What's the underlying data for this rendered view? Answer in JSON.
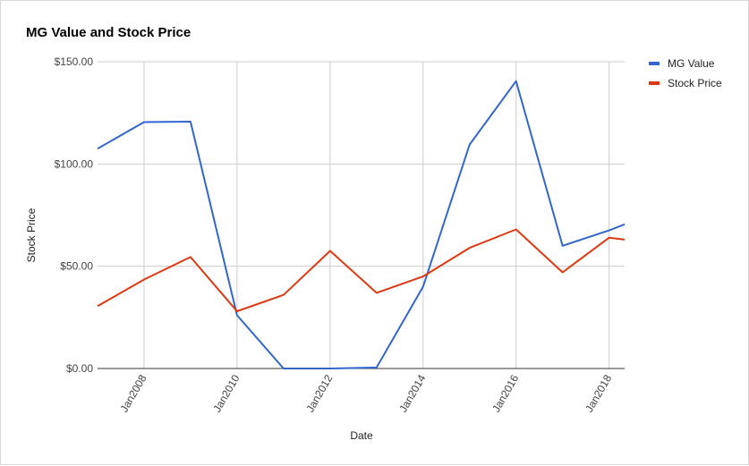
{
  "colors": {
    "mg_value": "#3366cc",
    "stock_price": "#dc3912",
    "grid": "#cccccc",
    "axis_text": "#444444"
  },
  "chart_data": {
    "type": "line",
    "title": "MG Value and Stock Price",
    "xlabel": "Date",
    "ylabel": "Stock Price",
    "x": [
      "2007-01",
      "2008-01",
      "2009-01",
      "2010-01",
      "2011-01",
      "2012-01",
      "2013-01",
      "2014-01",
      "2015-01",
      "2016-01",
      "2017-01",
      "2018-01",
      "2018-05"
    ],
    "x_ticks": [
      "Jan2008",
      "Jan2010",
      "Jan2012",
      "Jan2014",
      "Jan2016",
      "Jan2018"
    ],
    "y_ticks": [
      "$0.00",
      "$50.00",
      "$100.00",
      "$150.00"
    ],
    "ylim": [
      0,
      150
    ],
    "grid": true,
    "legend_position": "right",
    "series": [
      {
        "name": "MG Value",
        "values": [
          107.5,
          120.5,
          120.7,
          26,
          0,
          0,
          0.5,
          40,
          109.5,
          140.5,
          60,
          67.5,
          70.5
        ]
      },
      {
        "name": "Stock Price",
        "values": [
          30.5,
          43.5,
          54.5,
          28,
          36,
          57.5,
          37,
          45,
          59,
          68,
          47,
          64,
          63
        ]
      }
    ]
  }
}
